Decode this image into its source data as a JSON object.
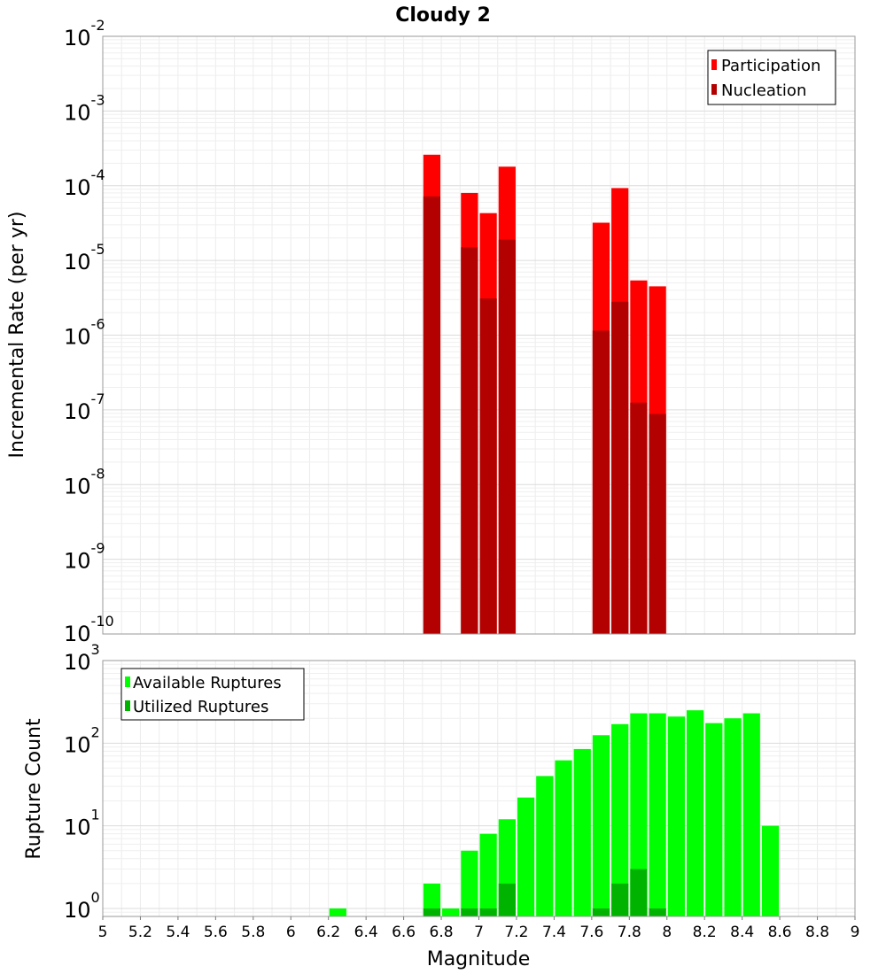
{
  "chart_data": [
    {
      "type": "bar",
      "title": "Cloudy 2",
      "ylabel": "Incremental Rate (per yr)",
      "yscale": "log",
      "ylim": [
        1e-10,
        0.01
      ],
      "xlim": [
        5,
        9
      ],
      "grid": true,
      "legend_position": "top-right",
      "bin_width": 0.1,
      "x": [
        6.75,
        6.95,
        7.05,
        7.15,
        7.65,
        7.75,
        7.85,
        7.95
      ],
      "series": [
        {
          "name": "Participation",
          "color": "#ff0000",
          "values": [
            0.00026,
            8e-05,
            4.3e-05,
            0.00018,
            3.2e-05,
            9.3e-05,
            5.4e-06,
            4.5e-06
          ]
        },
        {
          "name": "Nucleation",
          "color": "#b30000",
          "values": [
            7.2e-05,
            1.5e-05,
            3.1e-06,
            1.9e-05,
            1.15e-06,
            2.8e-06,
            1.25e-07,
            8.8e-08
          ]
        }
      ]
    },
    {
      "type": "bar",
      "ylabel": "Rupture Count",
      "xlabel": "Magnitude",
      "yscale": "log",
      "ylim": [
        0.8,
        1000
      ],
      "xlim": [
        5,
        9
      ],
      "grid": true,
      "legend_position": "top-left",
      "bin_width": 0.1,
      "series": [
        {
          "name": "Available Ruptures",
          "color": "#00ff00",
          "x": [
            6.25,
            6.75,
            6.85,
            6.95,
            7.05,
            7.15,
            7.25,
            7.35,
            7.45,
            7.55,
            7.65,
            7.75,
            7.85,
            7.95,
            8.05,
            8.15,
            8.25,
            8.35,
            8.45,
            8.55
          ],
          "values": [
            1,
            2,
            1,
            5,
            8,
            12,
            22,
            40,
            62,
            85,
            125,
            170,
            230,
            230,
            210,
            250,
            175,
            200,
            230,
            10
          ]
        },
        {
          "name": "Utilized Ruptures",
          "color": "#00b300",
          "x": [
            6.75,
            6.95,
            7.05,
            7.15,
            7.65,
            7.75,
            7.85,
            7.95
          ],
          "values": [
            1,
            1,
            1,
            2,
            1,
            2,
            3,
            1
          ]
        }
      ]
    }
  ],
  "axes": {
    "top_yticks": [
      {
        "base": "10",
        "exp": "-2"
      },
      {
        "base": "10",
        "exp": "-3"
      },
      {
        "base": "10",
        "exp": "-4"
      },
      {
        "base": "10",
        "exp": "-5"
      },
      {
        "base": "10",
        "exp": "-6"
      },
      {
        "base": "10",
        "exp": "-7"
      },
      {
        "base": "10",
        "exp": "-8"
      },
      {
        "base": "10",
        "exp": "-9"
      },
      {
        "base": "10",
        "exp": "-10"
      }
    ],
    "bottom_yticks": [
      {
        "base": "10",
        "exp": "3"
      },
      {
        "base": "10",
        "exp": "2"
      },
      {
        "base": "10",
        "exp": "1"
      },
      {
        "base": "10",
        "exp": "0"
      }
    ],
    "xticks": [
      "5",
      "5.2",
      "5.4",
      "5.6",
      "5.8",
      "6",
      "6.2",
      "6.4",
      "6.6",
      "6.8",
      "7",
      "7.2",
      "7.4",
      "7.6",
      "7.8",
      "8",
      "8.2",
      "8.4",
      "8.6",
      "8.8",
      "9"
    ]
  }
}
